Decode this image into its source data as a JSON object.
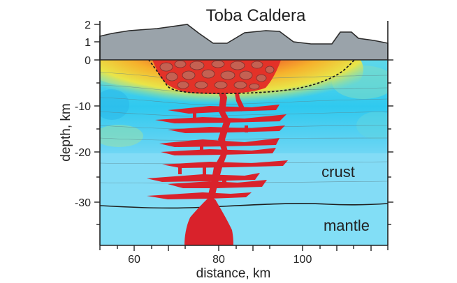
{
  "title": "Toba Caldera",
  "x_axis": {
    "label": "distance, km",
    "ticks": [
      {
        "value": 60,
        "label": "60"
      },
      {
        "value": 80,
        "label": "80"
      },
      {
        "value": 100,
        "label": "100"
      }
    ],
    "range_km": [
      52,
      120
    ]
  },
  "y_axis": {
    "label": "depth, km",
    "ticks": [
      {
        "value": 2,
        "label": "2"
      },
      {
        "value": 1,
        "label": "1"
      },
      {
        "value": 0,
        "label": "0"
      },
      {
        "value": -10,
        "label": "-10"
      },
      {
        "value": -20,
        "label": "-20"
      },
      {
        "value": -30,
        "label": "-30"
      }
    ]
  },
  "layers": {
    "crust_label": "crust",
    "mantle_label": "mantle"
  },
  "colors": {
    "upper_velocity_field": "#46d2f2",
    "crust": "#83dcf6",
    "mantle": "#82def6",
    "topography": "#9aa3aa",
    "magma": "#d9222b",
    "hot_anomaly": "#f2c02a"
  }
}
